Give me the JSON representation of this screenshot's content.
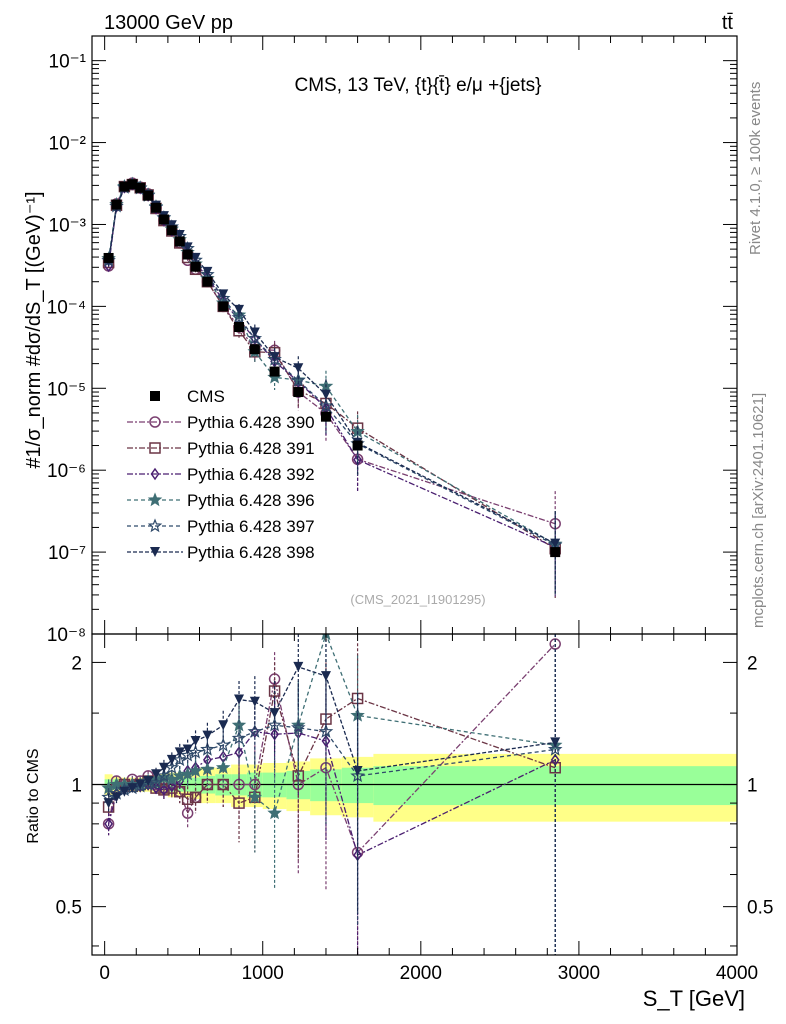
{
  "header": {
    "left": "13000 GeV pp",
    "right": "tt̄"
  },
  "side_text": {
    "rivet": "Rivet 4.1.0, ≥ 100k events",
    "mcplots": "mcplots.cern.ch [arXiv:2401.10621]"
  },
  "colors": {
    "cms": "#000000",
    "p390": "#7a3f70",
    "p391": "#6b3545",
    "p392": "#4a1f70",
    "p396": "#3f6f75",
    "p397": "#2f4a6a",
    "p398": "#1a2a50",
    "band_yellow": "#ffff88",
    "band_green": "#99ff99"
  },
  "chart_data": {
    "type": "line",
    "title": "CMS, 13 TeV, {t}{t̄} e/μ +{jets}",
    "analysis_id": "(CMS_2021_I1901295)",
    "ylabel": "#1/σ_norm #dσ/dS_T [(GeV)⁻¹]",
    "xlabel": "S_T [GeV]",
    "ratio_ylabel": "Ratio to CMS",
    "xlim": [
      -80,
      4000
    ],
    "ylim": [
      1e-08,
      0.2
    ],
    "ratio_ylim": [
      0.38,
      2.35
    ],
    "x_ticks": [
      "0",
      "1000",
      "2000",
      "3000",
      "4000"
    ],
    "y_ticks": [
      "10⁻⁸",
      "10⁻⁷",
      "10⁻⁶",
      "10⁻⁵",
      "10⁻⁴",
      "10⁻³",
      "10⁻²",
      "10⁻¹"
    ],
    "ratio_ticks": [
      "0.5",
      "1",
      "2"
    ],
    "x": [
      25,
      75,
      125,
      175,
      225,
      275,
      325,
      375,
      425,
      475,
      525,
      575,
      650,
      750,
      850,
      950,
      1075,
      1225,
      1400,
      1600,
      2850
    ],
    "cms": [
      0.00039,
      0.00175,
      0.0029,
      0.0031,
      0.0028,
      0.00225,
      0.0016,
      0.00115,
      0.00085,
      0.00062,
      0.00043,
      0.000305,
      0.0002,
      0.0001,
      5.6e-05,
      3e-05,
      1.6e-05,
      9e-06,
      4.5e-06,
      2e-06,
      1e-07
    ],
    "band_edges": [
      0,
      50,
      100,
      150,
      200,
      250,
      300,
      350,
      400,
      450,
      500,
      550,
      600,
      700,
      800,
      900,
      1000,
      1150,
      1300,
      1500,
      1700,
      4000
    ],
    "band_yellow": [
      0.06,
      0.05,
      0.04,
      0.04,
      0.04,
      0.04,
      0.05,
      0.06,
      0.07,
      0.07,
      0.07,
      0.08,
      0.1,
      0.1,
      0.12,
      0.12,
      0.13,
      0.14,
      0.16,
      0.17,
      0.19
    ],
    "band_green": [
      0.03,
      0.03,
      0.02,
      0.02,
      0.02,
      0.02,
      0.03,
      0.03,
      0.04,
      0.04,
      0.04,
      0.04,
      0.05,
      0.06,
      0.06,
      0.07,
      0.07,
      0.08,
      0.09,
      0.1,
      0.11
    ],
    "series": [
      {
        "name": "Pythia 6.428 390",
        "color_key": "p390",
        "dash": "6,2,2,2",
        "marker": "circle",
        "dx": 0,
        "ratio": [
          0.8,
          1.02,
          1.0,
          1.03,
          1.02,
          1.05,
          1.0,
          0.98,
          1.01,
          0.96,
          0.85,
          0.93,
          1.0,
          1.0,
          1.0,
          1.0,
          1.82,
          1.0,
          1.1,
          0.68,
          2.22
        ],
        "err": [
          0.05,
          0.03,
          0.02,
          0.02,
          0.03,
          0.03,
          0.04,
          0.05,
          0.05,
          0.06,
          0.07,
          0.08,
          0.1,
          0.12,
          0.18,
          0.25,
          0.3,
          0.4,
          0.55,
          0.6,
          1.5
        ]
      },
      {
        "name": "Pythia 6.428 391",
        "color_key": "p391",
        "dash": "6,2,2,2",
        "marker": "square",
        "dx": 0,
        "ratio": [
          0.88,
          0.98,
          1.0,
          0.99,
          1.0,
          1.02,
          0.98,
          0.97,
          0.98,
          0.96,
          0.92,
          0.93,
          1.0,
          1.0,
          0.9,
          0.93,
          1.7,
          1.05,
          1.45,
          1.63,
          1.1
        ],
        "err": [
          0.05,
          0.03,
          0.02,
          0.02,
          0.03,
          0.03,
          0.04,
          0.05,
          0.05,
          0.06,
          0.07,
          0.08,
          0.1,
          0.12,
          0.18,
          0.25,
          0.3,
          0.4,
          0.55,
          0.6,
          1.5
        ]
      },
      {
        "name": "Pythia 6.428 392",
        "color_key": "p392",
        "dash": "6,2,2,2",
        "marker": "diamond",
        "dx": 0,
        "ratio": [
          0.8,
          0.95,
          0.98,
          1.0,
          0.99,
          1.0,
          0.98,
          0.97,
          0.99,
          1.02,
          1.08,
          1.1,
          1.15,
          1.17,
          1.2,
          1.35,
          1.33,
          1.34,
          1.28,
          0.67,
          1.15
        ],
        "err": [
          0.05,
          0.03,
          0.02,
          0.02,
          0.03,
          0.03,
          0.04,
          0.05,
          0.05,
          0.06,
          0.07,
          0.08,
          0.1,
          0.12,
          0.18,
          0.25,
          0.3,
          0.4,
          0.55,
          0.6,
          1.5
        ]
      },
      {
        "name": "Pythia 6.428 396",
        "color_key": "p396",
        "dash": "4,3",
        "marker": "star",
        "dx": 0,
        "ratio": [
          0.98,
          1.0,
          1.0,
          1.0,
          1.0,
          1.02,
          1.03,
          1.04,
          1.03,
          1.05,
          1.06,
          1.08,
          1.09,
          1.1,
          1.4,
          0.93,
          0.85,
          1.4,
          2.35,
          1.48,
          1.25
        ],
        "err": [
          0.05,
          0.03,
          0.02,
          0.02,
          0.03,
          0.03,
          0.04,
          0.05,
          0.05,
          0.06,
          0.07,
          0.08,
          0.1,
          0.12,
          0.18,
          0.25,
          0.3,
          0.4,
          0.55,
          0.6,
          1.5
        ]
      },
      {
        "name": "Pythia 6.428 397",
        "color_key": "p397",
        "dash": "4,3",
        "marker": "star-open",
        "dx": 0,
        "ratio": [
          0.93,
          0.95,
          0.97,
          0.98,
          0.99,
          1.0,
          1.01,
          1.05,
          1.1,
          1.15,
          1.18,
          1.2,
          1.22,
          1.25,
          1.3,
          1.35,
          1.4,
          1.38,
          1.35,
          1.05,
          1.22
        ],
        "err": [
          0.05,
          0.03,
          0.02,
          0.02,
          0.03,
          0.03,
          0.04,
          0.05,
          0.05,
          0.06,
          0.07,
          0.08,
          0.1,
          0.12,
          0.18,
          0.25,
          0.3,
          0.4,
          0.55,
          0.6,
          1.5
        ]
      },
      {
        "name": "Pythia 6.428 398",
        "color_key": "p398",
        "dash": "4,2",
        "marker": "triangle-down",
        "dx": 0,
        "ratio": [
          0.9,
          0.93,
          0.96,
          0.98,
          1.0,
          1.02,
          1.06,
          1.1,
          1.15,
          1.2,
          1.22,
          1.28,
          1.32,
          1.4,
          1.62,
          1.6,
          1.5,
          1.95,
          1.85,
          1.08,
          1.27
        ],
        "err": [
          0.05,
          0.03,
          0.02,
          0.02,
          0.03,
          0.03,
          0.04,
          0.05,
          0.05,
          0.06,
          0.07,
          0.08,
          0.1,
          0.12,
          0.18,
          0.25,
          0.3,
          0.4,
          0.55,
          0.6,
          1.5
        ]
      }
    ],
    "legend": [
      "CMS",
      "Pythia 6.428 390",
      "Pythia 6.428 391",
      "Pythia 6.428 392",
      "Pythia 6.428 396",
      "Pythia 6.428 397",
      "Pythia 6.428 398"
    ]
  }
}
